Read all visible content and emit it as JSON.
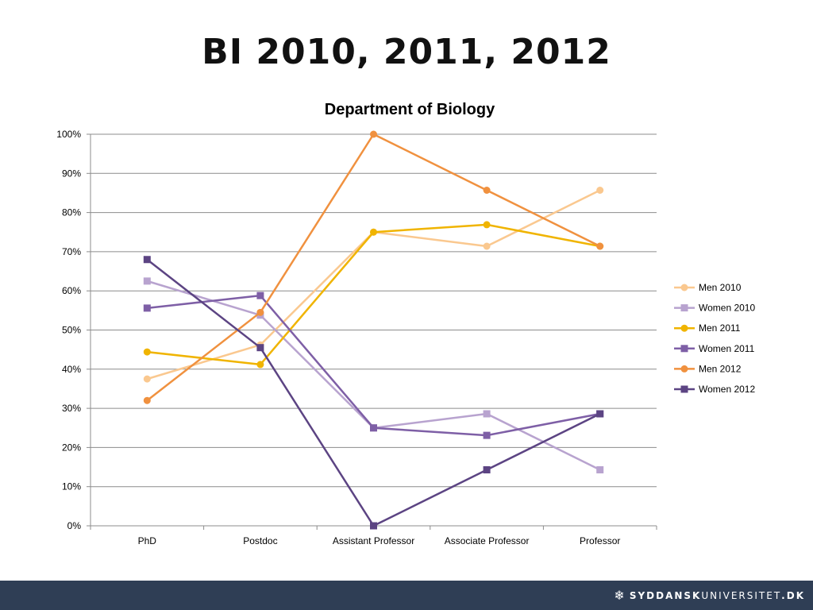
{
  "slide": {
    "title": "BI 2010, 2011, 2012"
  },
  "footer": {
    "logo_bold": "SYDDANSK",
    "logo_regular": "UNIVERSITET",
    "logo_suffix": ".DK",
    "logo_icon": "snowflake-icon"
  },
  "chart_data": {
    "type": "line",
    "title": "Department of Biology",
    "categories": [
      "PhD",
      "Postdoc",
      "Assistant Professor",
      "Associate Professor",
      "Professor"
    ],
    "y_ticks": [
      "0%",
      "10%",
      "20%",
      "30%",
      "40%",
      "50%",
      "60%",
      "70%",
      "80%",
      "90%",
      "100%"
    ],
    "ylim": [
      0,
      100
    ],
    "grid": true,
    "legend_position": "right",
    "series": [
      {
        "name": "Men 2010",
        "color": "#fac88f",
        "marker": "circle",
        "values": [
          37.5,
          46.2,
          75,
          71.4,
          85.7
        ]
      },
      {
        "name": "Women 2010",
        "color": "#b8a3cf",
        "marker": "square",
        "values": [
          62.5,
          53.8,
          25,
          28.6,
          14.3
        ]
      },
      {
        "name": "Men 2011",
        "color": "#f0b400",
        "marker": "circle",
        "values": [
          44.4,
          41.2,
          75,
          76.9,
          71.4
        ]
      },
      {
        "name": "Women 2011",
        "color": "#7e5fa6",
        "marker": "square",
        "values": [
          55.6,
          58.8,
          25,
          23.1,
          28.6
        ]
      },
      {
        "name": "Men 2012",
        "color": "#f0913f",
        "marker": "circle",
        "values": [
          32,
          54.5,
          100,
          85.7,
          71.4
        ]
      },
      {
        "name": "Women 2012",
        "color": "#5c4483",
        "marker": "square",
        "values": [
          68,
          45.5,
          0,
          14.3,
          28.6
        ]
      }
    ]
  }
}
